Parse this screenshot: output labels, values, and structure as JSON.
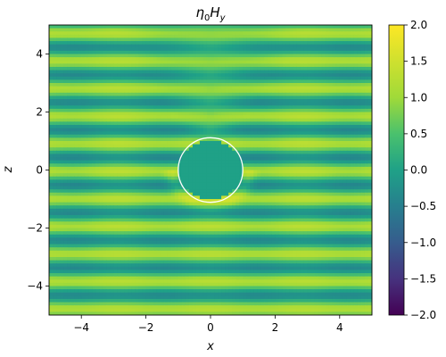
{
  "chart_data": {
    "type": "heatmap",
    "title_base": "η",
    "title_sub": "0",
    "title_var": "H",
    "title_var_sub": "y",
    "xlabel": "x",
    "ylabel": "z",
    "xlim": [
      -5,
      5
    ],
    "ylim": [
      -5,
      5
    ],
    "xticks": [
      -4,
      -2,
      0,
      2,
      4
    ],
    "yticks": [
      -4,
      -2,
      0,
      2,
      4
    ],
    "xtick_labels": [
      "−4",
      "−2",
      "0",
      "2",
      "4"
    ],
    "ytick_labels": [
      "−4",
      "−2",
      "0",
      "2",
      "4"
    ],
    "colorbar": {
      "colormap": "viridis",
      "range": [
        -2.0,
        2.0
      ],
      "ticks": [
        2.0,
        1.5,
        1.0,
        0.5,
        0.0,
        -0.5,
        -1.0,
        -1.5,
        -2.0
      ],
      "tick_labels": [
        "2.0",
        "1.5",
        "1.0",
        "0.5",
        "0.0",
        "−0.5",
        "−1.0",
        "−1.5",
        "−2.0"
      ]
    },
    "scatterer": {
      "shape": "circle",
      "center": [
        0,
        0
      ],
      "radius": 1.0,
      "interior_value": 0.0,
      "outline_color": "#ffffff"
    },
    "field": {
      "description_type": "standing wave pattern along z",
      "baseline": 0.45,
      "amplitude": 0.75,
      "period_z": 0.95,
      "grid": false
    }
  }
}
